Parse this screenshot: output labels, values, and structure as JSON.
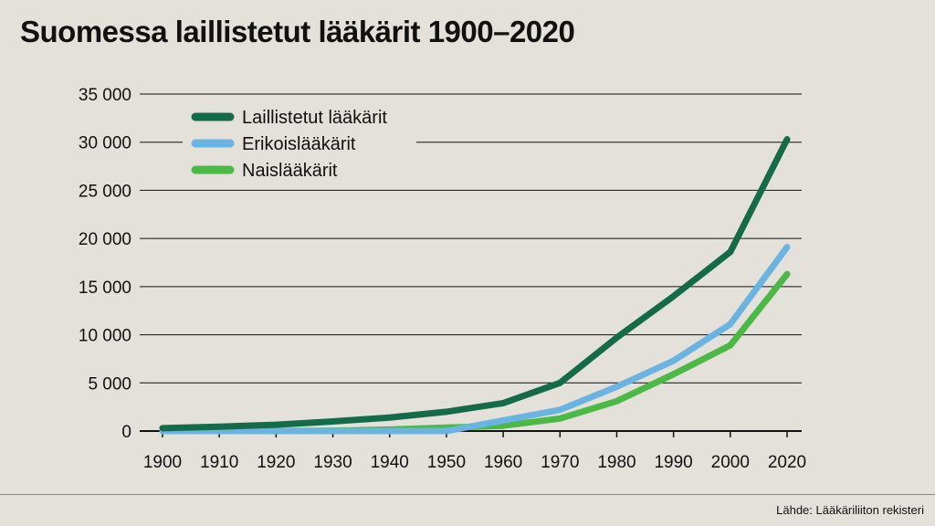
{
  "chart_data": {
    "type": "line",
    "title": "Suomessa laillistetut lääkärit 1900–2020",
    "x": [
      1900,
      1910,
      1920,
      1930,
      1940,
      1950,
      1960,
      1970,
      1980,
      1990,
      2000,
      2020
    ],
    "xticks": [
      "1900",
      "1910",
      "1920",
      "1930",
      "1940",
      "1950",
      "1960",
      "1970",
      "1980",
      "1990",
      "2000",
      "2020"
    ],
    "yticks": [
      "0",
      "5 000",
      "10 000",
      "15 000",
      "20 000",
      "25 000",
      "30 000",
      "35 000"
    ],
    "ylim": [
      0,
      35000
    ],
    "grid": true,
    "legend_position": "top-left",
    "series": [
      {
        "name": "Laillistetut lääkärit",
        "color": "#146b4a",
        "values": [
          300,
          450,
          650,
          1000,
          1400,
          2000,
          2900,
          5000,
          9700,
          14000,
          18600,
          30300
        ]
      },
      {
        "name": "Erikoislääkärit",
        "color": "#6bb3e0",
        "values": [
          0,
          0,
          0,
          0,
          0,
          0,
          1100,
          2200,
          4600,
          7300,
          11100,
          19100
        ]
      },
      {
        "name": "Naislääkärit",
        "color": "#4cb846",
        "values": [
          0,
          0,
          0,
          30,
          150,
          350,
          550,
          1300,
          3100,
          5900,
          8900,
          16300
        ]
      }
    ]
  },
  "footer": {
    "source": "Lähde: Lääkäriliiton rekisteri"
  }
}
